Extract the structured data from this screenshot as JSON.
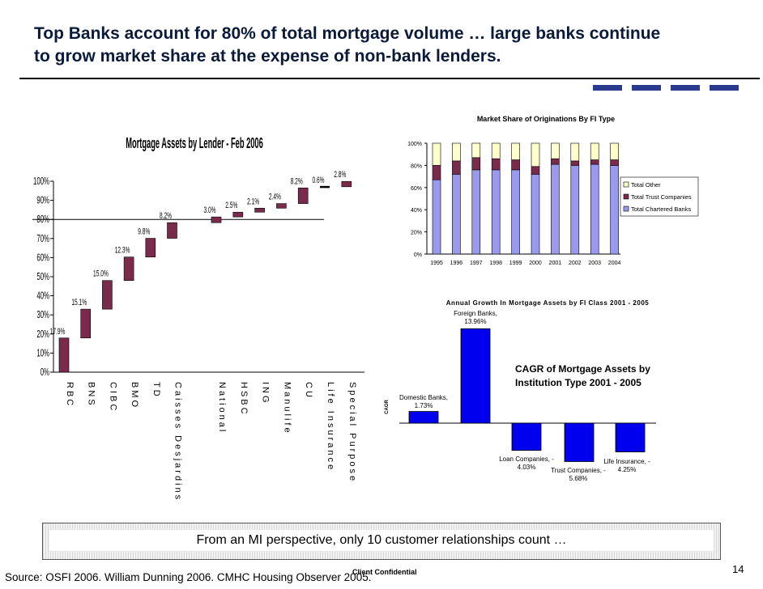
{
  "slide": {
    "title_line1": "Top Banks account for 80% of total mortgage volume … large banks continue",
    "title_line2": "to grow market share at the expense of non-bank lenders.",
    "banner_text": "From an MI perspective, only 10 customer relationships count …",
    "source": "Source: OSFI 2006. William Dunning 2006. CMHC Housing Observer 2005.",
    "confidential": "Client Confidential",
    "page_number": "14",
    "deco_color": "#2a3a8c"
  },
  "chart_data": [
    {
      "type": "bar",
      "subtype": "waterfall",
      "title": "Mortgage Assets by Lender - Feb 2006",
      "categories": [
        "RBC",
        "BNS",
        "CIBC",
        "BMO",
        "TD",
        "Caisses Desjardins",
        "National",
        "HSBC",
        "ING",
        "Manulife",
        "CU",
        "Life Insurance",
        "Special Purpose"
      ],
      "values": [
        17.9,
        15.1,
        15.0,
        12.3,
        9.8,
        8.2,
        3.0,
        2.5,
        2.1,
        2.4,
        8.2,
        0.6,
        2.8
      ],
      "value_labels": [
        "17.9%",
        "15.1%",
        "15.0%",
        "12.3%",
        "9.8%",
        "8.2%",
        "3.0%",
        "2.5%",
        "2.1%",
        "2.4%",
        "8.2%",
        "0.6%",
        "2.8%"
      ],
      "y_ticks": [
        "0%",
        "10%",
        "20%",
        "30%",
        "40%",
        "50%",
        "60%",
        "70%",
        "80%",
        "90%",
        "100%"
      ],
      "ylim": [
        0,
        100
      ],
      "reference_line": 80,
      "bar_color": "#7a2a4a"
    },
    {
      "type": "bar",
      "subtype": "stacked-percent",
      "title": "Market Share of Originations By FI Type",
      "categories": [
        "1995",
        "1996",
        "1997",
        "1998",
        "1999",
        "2000",
        "2001",
        "2002",
        "2003",
        "2004"
      ],
      "series": [
        {
          "name": "Total Chartered Banks",
          "values": [
            67,
            72,
            76,
            76,
            76,
            72,
            81,
            80,
            81,
            80
          ],
          "color": "#9999ee"
        },
        {
          "name": "Total Trust Companies",
          "values": [
            13,
            12,
            11,
            10,
            9,
            7,
            5,
            4,
            4,
            5
          ],
          "color": "#7a2a4a"
        },
        {
          "name": "Total Other",
          "values": [
            20,
            16,
            13,
            14,
            15,
            21,
            14,
            16,
            15,
            15
          ],
          "color": "#ffffcc"
        }
      ],
      "y_ticks": [
        "0%",
        "20%",
        "40%",
        "60%",
        "80%",
        "100%"
      ],
      "ylim": [
        0,
        100
      ],
      "legend_position": "right"
    },
    {
      "type": "bar",
      "title": "Annual Growth In Mortgage Assets by FI Class 2001 - 2005",
      "ylabel": "CAGR",
      "annotation": "CAGR of Mortgage Assets by Institution Type 2001 - 2005",
      "categories": [
        "Domestic Banks",
        "Foreign Banks",
        "Loan Companies",
        "Trust Companies",
        "Life Insurance"
      ],
      "values": [
        1.73,
        13.96,
        -4.03,
        -5.68,
        -4.25
      ],
      "value_labels": [
        [
          "Domestic Banks,",
          "1.73%"
        ],
        [
          "Foreign Banks,",
          "13.96%"
        ],
        [
          "Loan Companies, -",
          "4.03%"
        ],
        [
          "Trust Companies, -",
          "5.68%"
        ],
        [
          "Life Insurance, -",
          "4.25%"
        ]
      ],
      "bar_color": "#0000ee"
    }
  ]
}
